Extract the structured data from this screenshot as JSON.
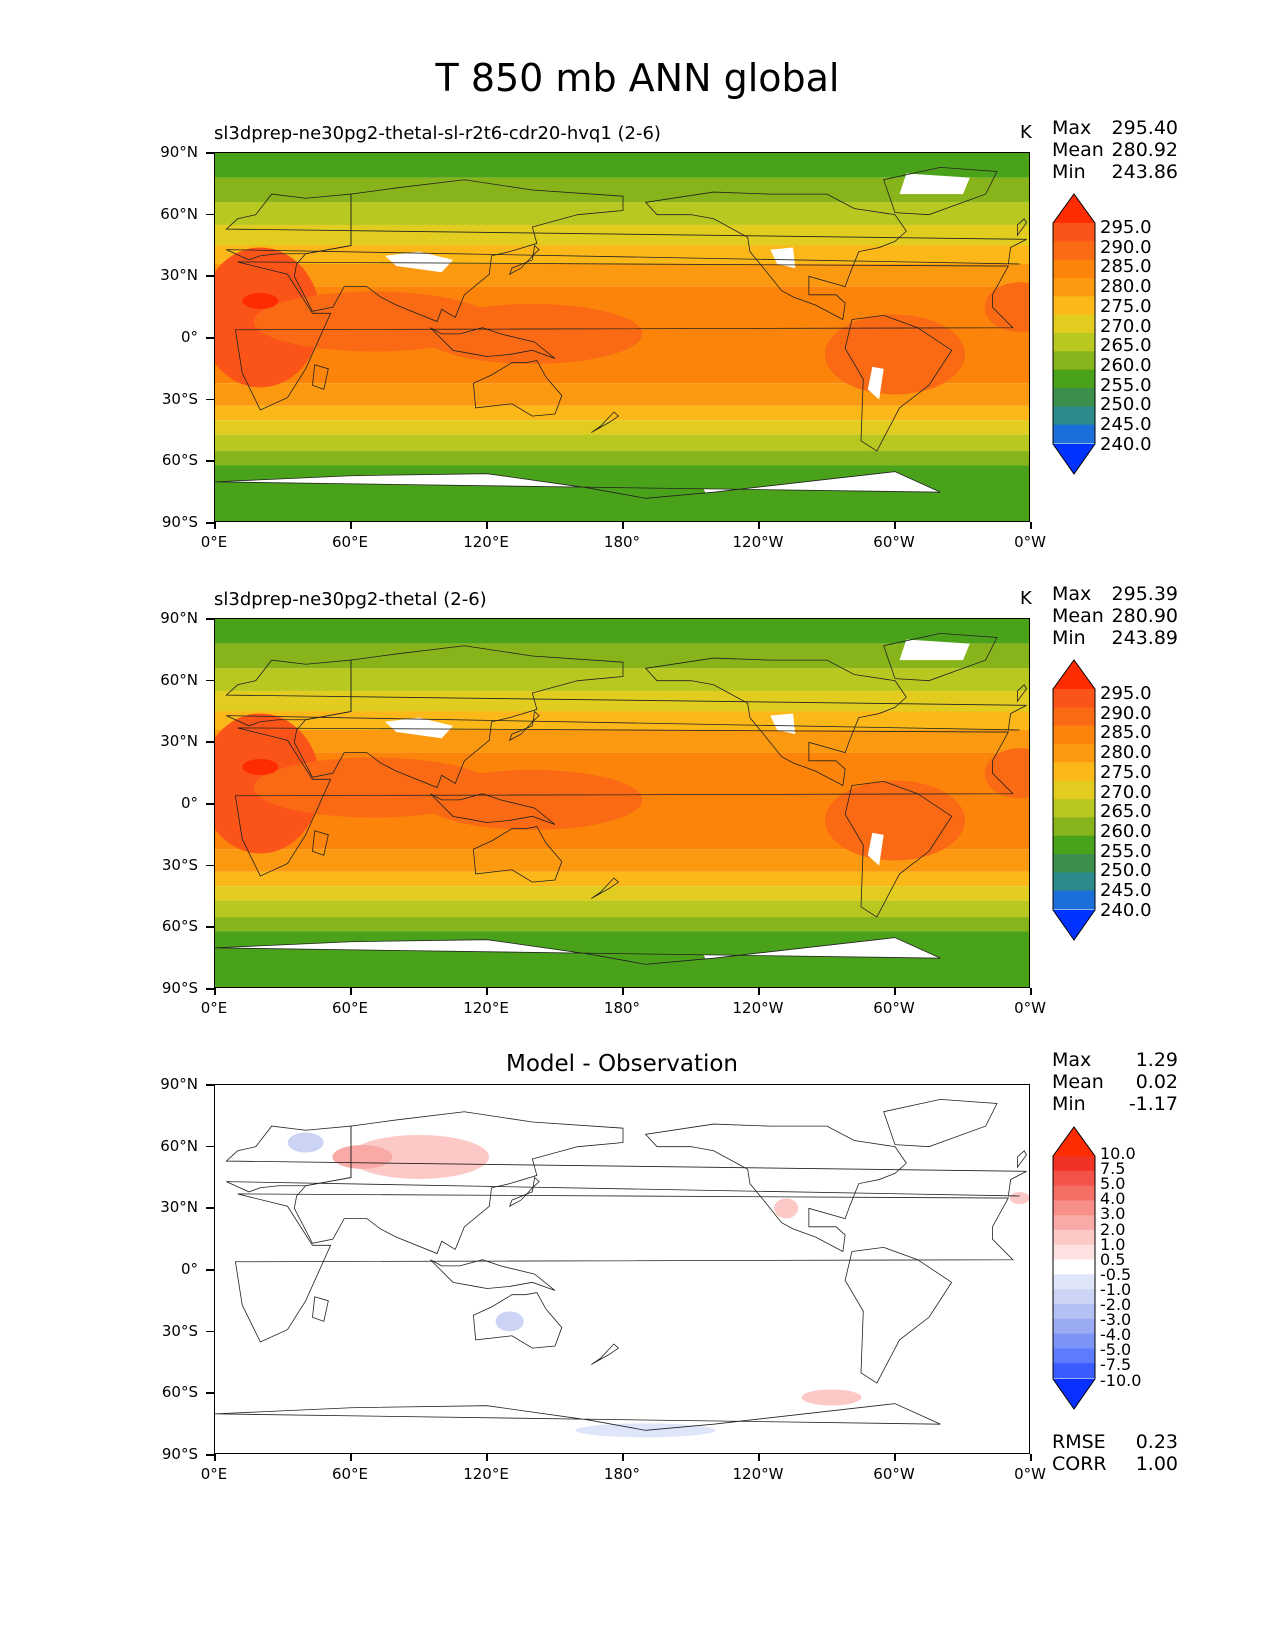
{
  "title": "T 850 mb ANN global",
  "ylabels": [
    "90°N",
    "60°N",
    "30°N",
    "0°",
    "30°S",
    "60°S",
    "90°S"
  ],
  "xlabels": [
    "0°E",
    "60°E",
    "120°E",
    "180°",
    "120°W",
    "60°W",
    "0°W"
  ],
  "panels": [
    {
      "title": "sl3dprep-ne30pg2-thetal-sl-r2t6-cdr20-hvq1 (2-6)",
      "units": "K",
      "stats": {
        "max_label": "Max",
        "max": "295.40",
        "mean_label": "Mean",
        "mean": "280.92",
        "min_label": "Min",
        "min": "243.86"
      },
      "colorbar": [
        "295.0",
        "290.0",
        "285.0",
        "280.0",
        "275.0",
        "270.0",
        "265.0",
        "260.0",
        "255.0",
        "250.0",
        "245.0",
        "240.0"
      ]
    },
    {
      "title": "sl3dprep-ne30pg2-thetal (2-6)",
      "units": "K",
      "stats": {
        "max_label": "Max",
        "max": "295.39",
        "mean_label": "Mean",
        "mean": "280.90",
        "min_label": "Min",
        "min": "243.89"
      },
      "colorbar": [
        "295.0",
        "290.0",
        "285.0",
        "280.0",
        "275.0",
        "270.0",
        "265.0",
        "260.0",
        "255.0",
        "250.0",
        "245.0",
        "240.0"
      ]
    },
    {
      "title": "Model - Observation",
      "units": "",
      "stats": {
        "max_label": "Max",
        "max": "1.29",
        "mean_label": "Mean",
        "mean": "0.02",
        "min_label": "Min",
        "min": "-1.17"
      },
      "colorbar": [
        "10.0",
        "7.5",
        "5.0",
        "4.0",
        "3.0",
        "2.0",
        "1.0",
        "0.5",
        "-0.5",
        "-1.0",
        "-2.0",
        "-3.0",
        "-4.0",
        "-5.0",
        "-7.5",
        "-10.0"
      ],
      "rmse_label": "RMSE",
      "rmse": "0.23",
      "corr_label": "CORR",
      "corr": "1.00"
    }
  ],
  "colors": {
    "temp_scale": [
      "#0033ff",
      "#1b6fd8",
      "#2c8a8a",
      "#3c8f4a",
      "#4aa21a",
      "#86b41a",
      "#b8c820",
      "#e2cc20",
      "#fbb818",
      "#fb9a10",
      "#fc840a",
      "#fa6a14",
      "#fb5418",
      "#fe2c00"
    ],
    "diff_scale": [
      "#0a30ff",
      "#3a5cff",
      "#5c7cfd",
      "#7c94f6",
      "#9aaaf3",
      "#b4c0f3",
      "#ccd4f6",
      "#e0e6fa",
      "#ffffff",
      "#fde1e0",
      "#fcc9c6",
      "#f9aaa6",
      "#f88e88",
      "#f56e66",
      "#f2524a",
      "#ef3224",
      "#fe2c00"
    ]
  }
}
